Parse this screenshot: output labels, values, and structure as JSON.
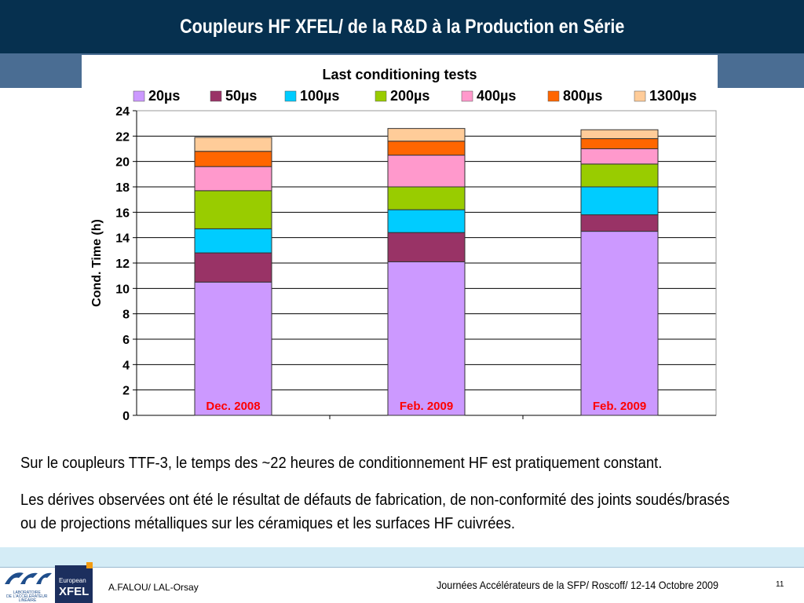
{
  "slide": {
    "title": "Coupleurs HF XFEL/ de la R&D à la Production en Série",
    "paragraph1": "Sur le coupleurs TTF-3, le temps des ~22 heures de conditionnement HF est pratiquement constant.",
    "paragraph2": "Les dérives observées ont été le résultat de défauts de fabrication, de non-conformité des joints soudés/brasés ou de projections métalliques sur les céramiques et les surfaces HF cuivrées."
  },
  "footer": {
    "author": "A.FALOU/ LAL-Orsay",
    "event": "Journées Accélérateurs de la SFP/  Roscoff/ 12-14 Octobre 2009",
    "page": "11",
    "lal_logo_text": "LABORATOIRE DE L'ACCÉLÉRATEUR LINÉAIRE",
    "xfel_logo_line1": "European",
    "xfel_logo_line2": "XFEL"
  },
  "chart_data": {
    "type": "bar",
    "stacked": true,
    "title": "Last conditioning tests",
    "ylabel": "Cond. Time (h)",
    "xlabel": "",
    "ylim": [
      0,
      24
    ],
    "yticks": [
      "0",
      "2",
      "4",
      "6",
      "8",
      "10",
      "12",
      "14",
      "16",
      "18",
      "20",
      "22",
      "24"
    ],
    "grid": true,
    "legend_position": "top",
    "categories": [
      "Dec. 2008",
      "Feb. 2009",
      "Feb. 2009"
    ],
    "series": [
      {
        "name": "20µs",
        "color": "#cc99ff",
        "values": [
          10.5,
          12.1,
          14.5
        ]
      },
      {
        "name": "50µs",
        "color": "#993366",
        "values": [
          2.3,
          2.3,
          1.3
        ]
      },
      {
        "name": "100µs",
        "color": "#00ccff",
        "values": [
          1.9,
          1.8,
          2.2
        ]
      },
      {
        "name": "200µs",
        "color": "#99cc00",
        "values": [
          3.0,
          1.8,
          1.8
        ]
      },
      {
        "name": "400µs",
        "color": "#ff99cc",
        "values": [
          1.9,
          2.5,
          1.2
        ]
      },
      {
        "name": "800µs",
        "color": "#ff6600",
        "values": [
          1.2,
          1.1,
          0.8
        ]
      },
      {
        "name": "1300µs",
        "color": "#ffcc99",
        "values": [
          1.1,
          1.0,
          0.7
        ]
      }
    ],
    "category_label_color": "#ff0000"
  }
}
